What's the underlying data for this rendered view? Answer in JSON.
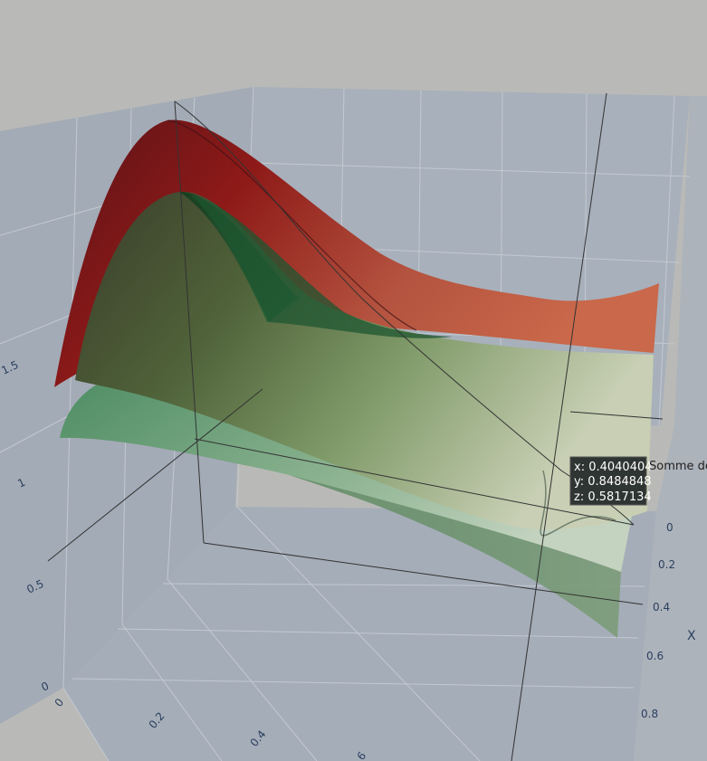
{
  "chart_data": {
    "type": "surface",
    "xlabel": "X",
    "x_ticks": [
      "0",
      "0.2",
      "0.4",
      "0.6",
      "0.8"
    ],
    "y_ticks": [
      "0",
      "0.2",
      "0.4",
      "6"
    ],
    "z_ticks": [
      "0",
      "0.5",
      "1",
      "1.5"
    ],
    "series": [
      {
        "name": "",
        "color": "#8c1616"
      },
      {
        "name": "",
        "color": "#2e7b47"
      }
    ],
    "hover": {
      "lines": [
        "x: 0.4040404",
        "y: 0.8484848",
        "z: 0.5817134"
      ],
      "label": "Somme de"
    },
    "scene_background": "#aab1bb",
    "paper_background": "#b9bab7"
  }
}
